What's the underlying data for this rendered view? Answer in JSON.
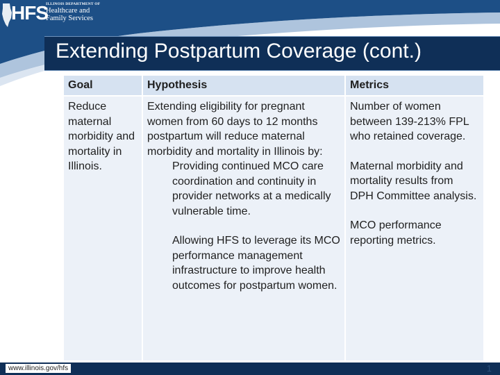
{
  "brand": {
    "logo_mark": "HFS",
    "dept_line": "ILLINOIS DEPARTMENT OF",
    "name_line1": "Healthcare and",
    "name_line2": "Family Services"
  },
  "slide": {
    "title": "Extending Postpartum Coverage (cont.)"
  },
  "table": {
    "headers": [
      "Goal",
      "Hypothesis",
      "Metrics"
    ],
    "goal": "Reduce maternal morbidity and mortality in Illinois.",
    "hypothesis": {
      "intro": "Extending eligibility for pregnant women from 60 days to 12 months postpartum will reduce maternal morbidity and mortality in Illinois by:",
      "points": [
        "Providing continued MCO care coordination and continuity in provider networks at a medically vulnerable time.",
        "Allowing HFS to leverage its MCO performance management infrastructure to improve health outcomes for postpartum women."
      ]
    },
    "metrics": [
      "Number of women between 139-213% FPL who retained coverage.",
      "Maternal morbidity and mortality results from DPH Committee analysis.",
      "MCO performance reporting metrics."
    ]
  },
  "footer": {
    "url": "www.illinois.gov/hfs",
    "page_number": "1"
  },
  "colors": {
    "navy": "#0f2f57",
    "header_cell": "#d6e2f1",
    "body_cell": "#ecf1f8"
  }
}
